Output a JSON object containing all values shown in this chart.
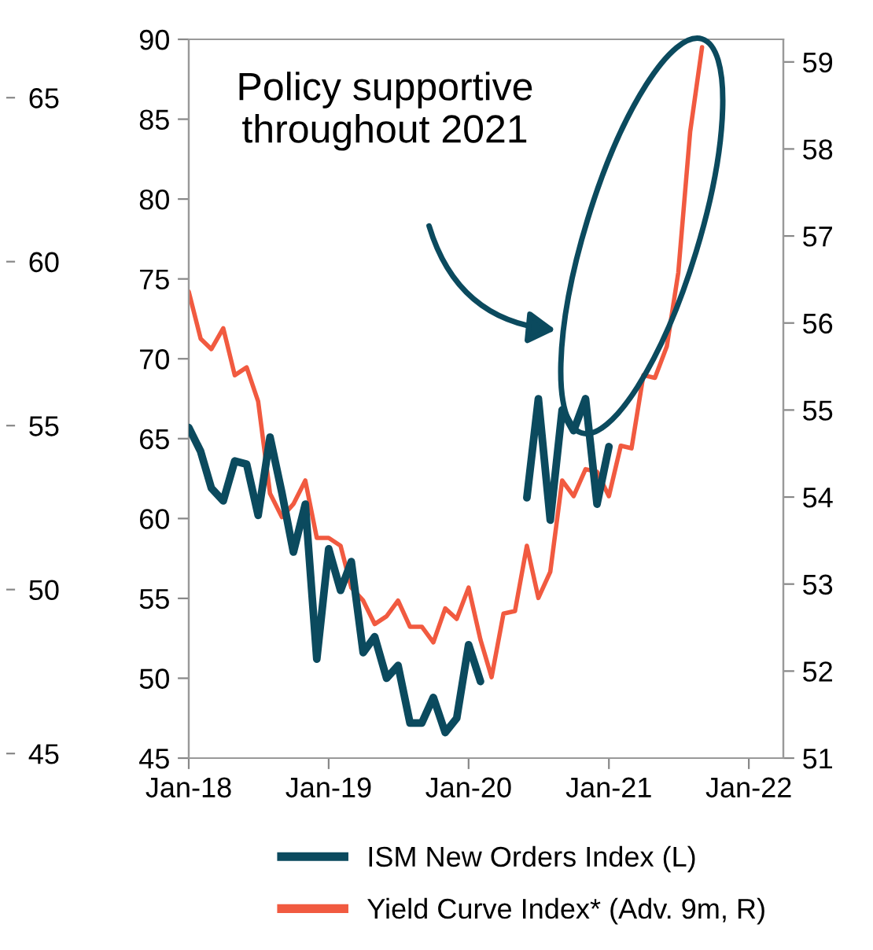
{
  "chart_data": {
    "type": "line",
    "annotations": [
      "Policy supportive\nthroughout 2021"
    ],
    "series": [
      {
        "name": "ISM New Orders Index (L)",
        "color": "#0b4a5e",
        "axis": "y",
        "x": [
          "2018-01",
          "2018-02",
          "2018-03",
          "2018-04",
          "2018-05",
          "2018-06",
          "2018-07",
          "2018-08",
          "2018-09",
          "2018-10",
          "2018-11",
          "2018-12",
          "2019-01",
          "2019-02",
          "2019-03",
          "2019-04",
          "2019-05",
          "2019-06",
          "2019-07",
          "2019-08",
          "2019-09",
          "2019-10",
          "2019-11",
          "2019-12",
          "2020-01",
          "2020-02",
          "2020-03",
          "2020-04",
          "2020-05",
          "2020-06",
          "2020-07",
          "2020-08",
          "2020-09",
          "2020-10",
          "2020-11",
          "2020-12",
          "2021-01"
        ],
        "values": [
          65.7,
          64.2,
          61.9,
          61.1,
          63.6,
          63.4,
          60.2,
          65.1,
          61.6,
          57.9,
          60.9,
          51.2,
          58.1,
          55.5,
          57.3,
          51.6,
          52.6,
          50.0,
          50.8,
          47.2,
          47.2,
          48.8,
          46.6,
          47.5,
          52.1,
          49.8,
          null,
          null,
          null,
          61.3,
          67.5,
          59.9,
          66.8,
          65.5,
          67.5,
          60.9,
          64.5
        ]
      },
      {
        "name": "Yield Curve Index* (Adv. 9m, R)",
        "color": "#f15a40",
        "axis": "y2",
        "x": [
          "2018-01",
          "2018-02",
          "2018-03",
          "2018-04",
          "2018-05",
          "2018-06",
          "2018-07",
          "2018-08",
          "2018-09",
          "2018-10",
          "2018-11",
          "2018-12",
          "2019-01",
          "2019-02",
          "2019-03",
          "2019-04",
          "2019-05",
          "2019-06",
          "2019-07",
          "2019-08",
          "2019-09",
          "2019-10",
          "2019-11",
          "2019-12",
          "2020-01",
          "2020-02",
          "2020-03",
          "2020-04",
          "2020-05",
          "2020-06",
          "2020-07",
          "2020-08",
          "2020-09",
          "2020-10",
          "2020-11",
          "2020-12",
          "2021-01",
          "2021-02",
          "2021-03",
          "2021-04",
          "2021-05",
          "2021-06",
          "2021-07",
          "2021-08",
          "2021-09"
        ],
        "values": [
          56.36,
          55.82,
          55.7,
          55.94,
          55.4,
          55.49,
          55.1,
          54.04,
          53.77,
          53.92,
          54.19,
          53.53,
          53.53,
          53.44,
          52.96,
          52.81,
          52.54,
          52.63,
          52.81,
          52.51,
          52.51,
          52.33,
          52.72,
          52.6,
          52.96,
          52.36,
          51.93,
          52.66,
          52.69,
          53.44,
          52.84,
          53.14,
          54.19,
          54.01,
          54.32,
          54.29,
          54.01,
          54.59,
          54.56,
          55.4,
          55.37,
          55.73,
          56.58,
          58.2,
          59.17
        ]
      }
    ],
    "xlim": [
      "2018-01",
      "2022-04"
    ],
    "xticks": [
      {
        "value": "2018-01",
        "label": "Jan-18"
      },
      {
        "value": "2019-01",
        "label": "Jan-19"
      },
      {
        "value": "2020-01",
        "label": "Jan-20"
      },
      {
        "value": "2021-01",
        "label": "Jan-21"
      },
      {
        "value": "2022-01",
        "label": "Jan-22"
      }
    ],
    "ylim": [
      45,
      90
    ],
    "yticks": [
      45,
      50,
      55,
      60,
      65,
      70,
      75,
      80,
      85,
      90
    ],
    "y2lim": [
      51,
      59.26
    ],
    "y2ticks": [
      51,
      52,
      53,
      54,
      55,
      56,
      57,
      58,
      59
    ],
    "y3lim": [
      44.86,
      66.78
    ],
    "y3ticks": [
      45,
      50,
      55,
      60,
      65
    ],
    "grid": false,
    "legend": "bottom",
    "marker": "none",
    "line_style": "solid"
  }
}
